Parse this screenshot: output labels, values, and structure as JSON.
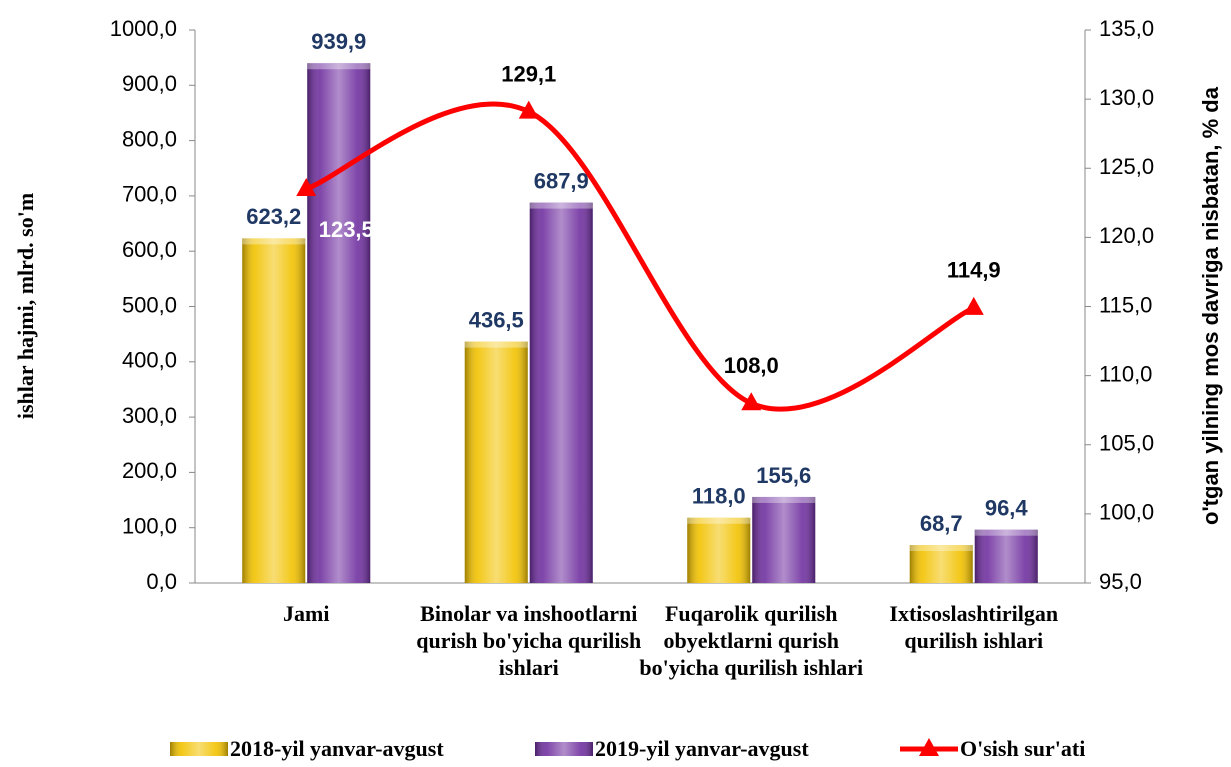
{
  "chart_data": {
    "type": "bar",
    "y_label": "ishlar hajmi, mlrd. so'm",
    "y2_label": "o'tgan yilning mos davriga nisbatan, % da",
    "categories": [
      "Jami",
      "Binolar va inshootlarni qurish bo'yicha qurilish ishlari",
      "Fuqarolik qurilish obyektlarni qurish bo'yicha qurilish ishlari",
      "Ixtisoslashtirilgan qurilish ishlari"
    ],
    "series": [
      {
        "name": "2018-yil yanvar-avgust",
        "type": "bar",
        "color": "#f2c200",
        "values": [
          623.2,
          436.5,
          118.0,
          68.7
        ],
        "value_labels": [
          "623,2",
          "436,5",
          "118,0",
          "68,7"
        ]
      },
      {
        "name": "2019-yil yanvar-avgust",
        "type": "bar",
        "color": "#7030a0",
        "values": [
          939.9,
          687.9,
          155.6,
          96.4
        ],
        "value_labels": [
          "939,9",
          "687,9",
          "155,6",
          "96,4"
        ]
      },
      {
        "name": "O'sish sur'ati",
        "type": "line",
        "axis": "y2",
        "color": "#ff0000",
        "values": [
          123.5,
          129.1,
          108.0,
          114.9
        ],
        "value_labels": [
          "123,5",
          "129,1",
          "108,0",
          "114,9"
        ]
      }
    ],
    "ylim": [
      0,
      1000
    ],
    "yticks": [
      {
        "value": 0,
        "label": "0,0"
      },
      {
        "value": 100,
        "label": "100,0"
      },
      {
        "value": 200,
        "label": "200,0"
      },
      {
        "value": 300,
        "label": "300,0"
      },
      {
        "value": 400,
        "label": "400,0"
      },
      {
        "value": 500,
        "label": "500,0"
      },
      {
        "value": 600,
        "label": "600,0"
      },
      {
        "value": 700,
        "label": "700,0"
      },
      {
        "value": 800,
        "label": "800,0"
      },
      {
        "value": 900,
        "label": "900,0"
      },
      {
        "value": 1000,
        "label": "1000,0"
      }
    ],
    "y2lim": [
      95,
      135
    ],
    "y2ticks": [
      {
        "value": 95,
        "label": "95,0"
      },
      {
        "value": 100,
        "label": "100,0"
      },
      {
        "value": 105,
        "label": "105,0"
      },
      {
        "value": 110,
        "label": "110,0"
      },
      {
        "value": 115,
        "label": "115,0"
      },
      {
        "value": 120,
        "label": "120,0"
      },
      {
        "value": 125,
        "label": "125,0"
      },
      {
        "value": 130,
        "label": "130,0"
      },
      {
        "value": 135,
        "label": "135,0"
      }
    ],
    "legend": "bottom"
  }
}
